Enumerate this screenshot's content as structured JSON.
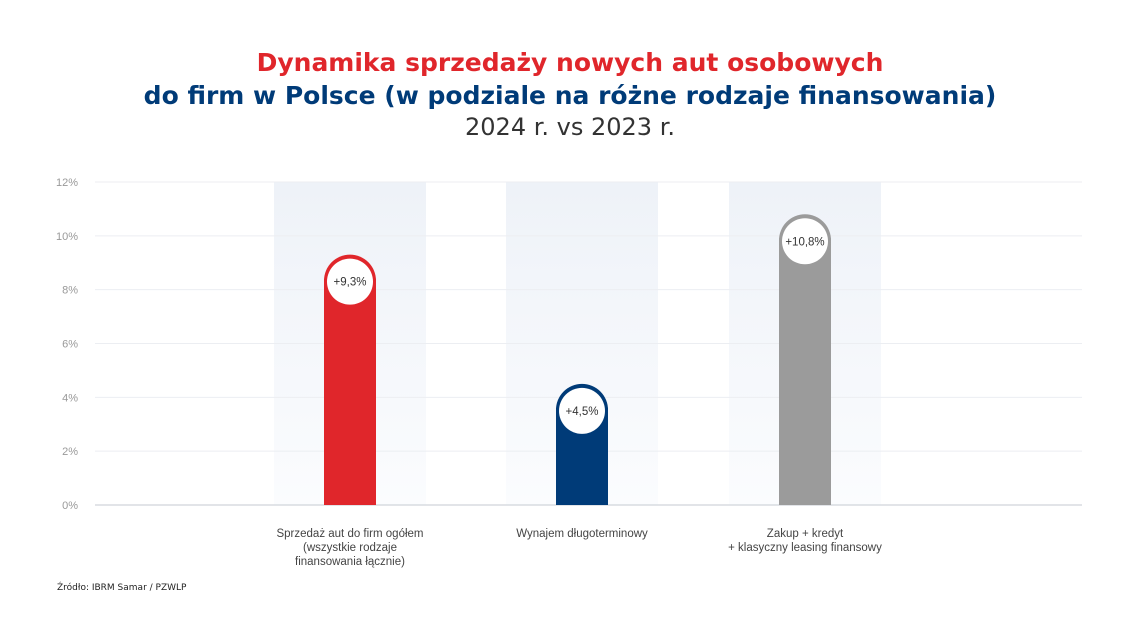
{
  "chart_data": {
    "type": "bar",
    "title": "Dynamika sprzedaży nowych aut osobowych",
    "subtitle_line2": "do firm w Polsce (w podziale na różne rodzaje finansowania)",
    "subtitle_line3": "2024 r. vs 2023 r.",
    "categories": [
      "Sprzedaż aut do firm ogółem\n(wszystkie rodzaje\nfinansowania łącznie)",
      "Wynajem długoterminowy",
      "Zakup + kredyt\n+ klasyczny leasing finansowy"
    ],
    "values": [
      9.3,
      4.5,
      10.8
    ],
    "data_labels": [
      "+9,3%",
      "+4,5%",
      "+10,8%"
    ],
    "colors": [
      "#e0262b",
      "#003b78",
      "#9b9b9b"
    ],
    "ylim": [
      0,
      12
    ],
    "yticks": [
      "0%",
      "2%",
      "4%",
      "6%",
      "8%",
      "10%",
      "12%"
    ],
    "grid": true,
    "xlabel": "",
    "ylabel": ""
  },
  "source": "Źródło:  IBRM Samar / PZWLP"
}
